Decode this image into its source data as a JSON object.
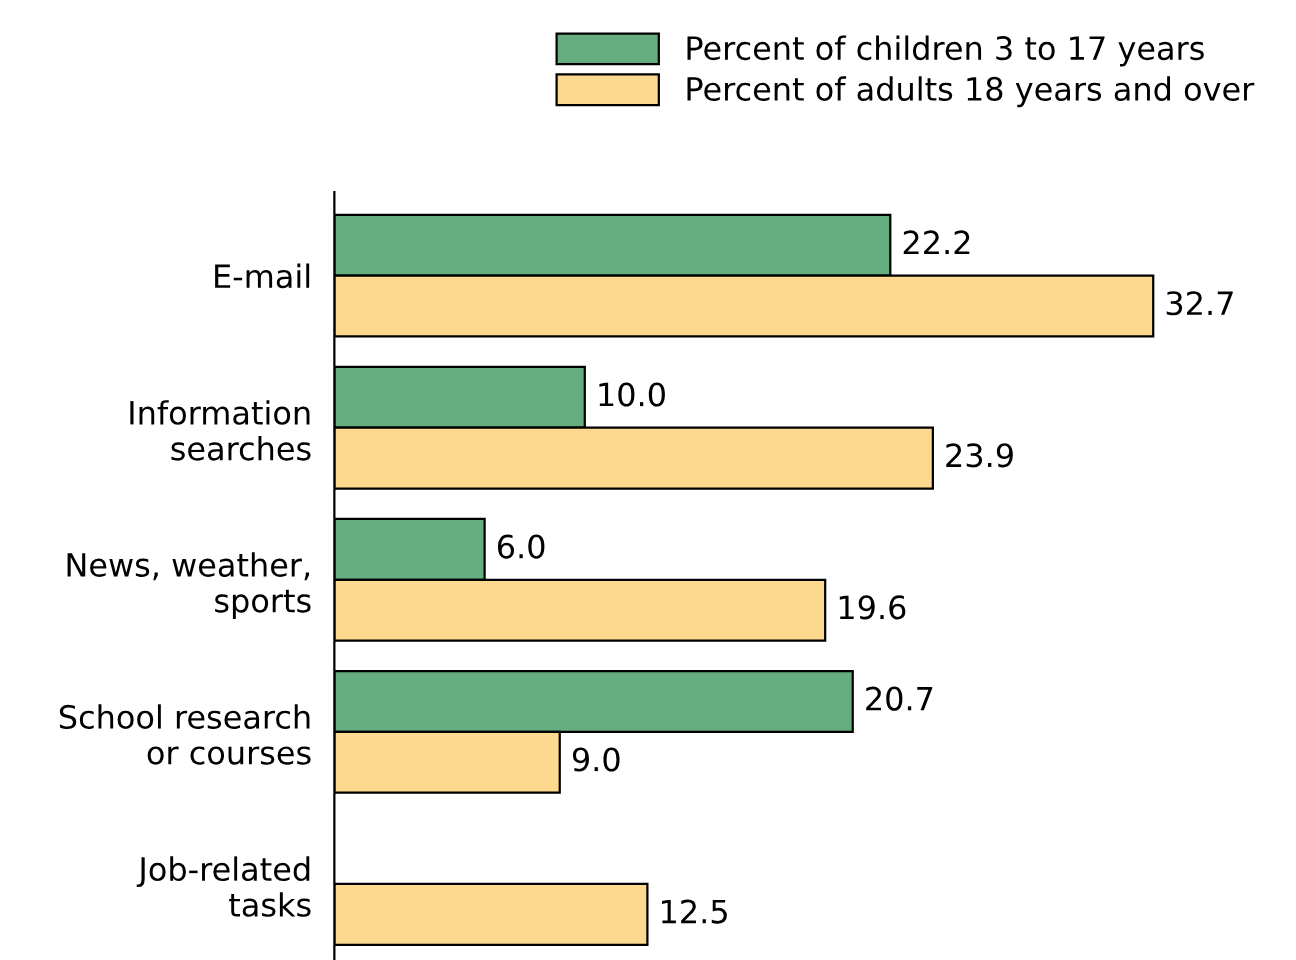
{
  "chart_data": {
    "type": "bar",
    "orientation": "horizontal",
    "categories": [
      "E-mail",
      "Information\nsearches",
      "News, weather,\nsports",
      "School research\nor courses",
      "Job-related\ntasks"
    ],
    "series": [
      {
        "name": "Percent of children 3 to 17 years",
        "color": "#66ad7f",
        "values": [
          22.2,
          10.0,
          6.0,
          20.7,
          null
        ],
        "value_labels": [
          "22.2",
          "10.0",
          "6.0",
          "20.7",
          null
        ]
      },
      {
        "name": "Percent of adults 18 years and over",
        "color": "#fdd88f",
        "values": [
          32.7,
          23.9,
          19.6,
          9.0,
          12.5
        ],
        "value_labels": [
          "32.7",
          "23.9",
          "19.6",
          "9.0",
          "12.5"
        ]
      }
    ],
    "legend": "top right",
    "grid": false
  }
}
